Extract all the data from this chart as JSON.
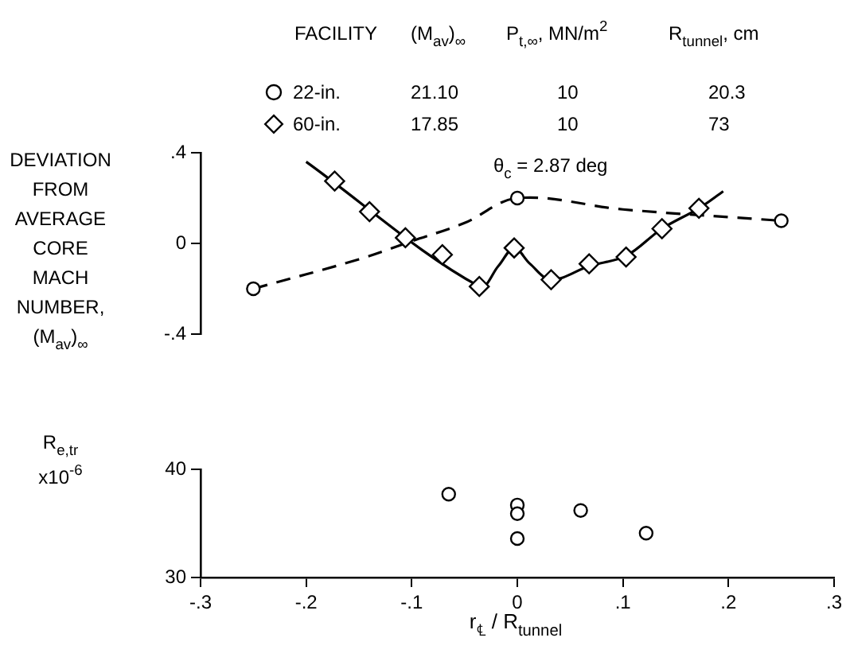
{
  "chart_data": [
    {
      "type": "scatter",
      "ylabel": "DEVIATION FROM AVERAGE CORE MACH NUMBER, (M$_{av}$)$_{∞}$",
      "legend_title": "FACILITY",
      "legend": "top",
      "annotations": [
        "(M$_{av}$)$_{∞}$",
        "P$_{t,∞}$, MN/m$^{2}$",
        "R$_{tunnel}$, cm",
        "21.10",
        "10",
        "20.3",
        "17.85",
        "10",
        "73",
        "θ$_{c}$ = 2.87 deg"
      ],
      "xlim": [
        -0.3,
        0.3
      ],
      "ylim": [
        -0.4,
        0.4
      ],
      "yticks": [
        {
          "value": 0.4,
          "label": ".4"
        },
        0,
        {
          "value": -0.4,
          "label": "-.4"
        }
      ],
      "tick_labels": "y",
      "series": [
        {
          "name": "22-in.",
          "type": "scatter",
          "marker": "circle",
          "color": "#000000",
          "x": [
            -0.25,
            0,
            0.25
          ],
          "values": [
            -0.2,
            0.2,
            0.1
          ]
        },
        {
          "name": "60-in.",
          "type": "scatter",
          "marker": "diamond",
          "color": "#000000",
          "x": [
            -0.173,
            -0.14,
            -0.106,
            -0.071,
            -0.036,
            -0.003,
            0.032,
            0.068,
            0.103,
            0.137,
            0.172
          ],
          "values": [
            0.275,
            0.14,
            0.025,
            -0.05,
            -0.19,
            -0.02,
            -0.16,
            -0.09,
            -0.06,
            0.065,
            0.155
          ]
        },
        {
          "type": "line",
          "marker": "none",
          "line_style": "solid",
          "color": "#000000",
          "x": [
            -0.2,
            -0.036,
            -0.018,
            -0.003,
            0.012,
            0.032,
            0.068,
            0.103,
            0.137,
            0.172,
            0.195
          ],
          "values": [
            0.36,
            -0.19,
            -0.1,
            -0.02,
            -0.09,
            -0.16,
            -0.1,
            -0.055,
            0.065,
            0.155,
            0.23
          ]
        },
        {
          "type": "line",
          "marker": "none",
          "line_style": "dashed",
          "color": "#000000",
          "x": [
            -0.25,
            -0.15,
            -0.1,
            -0.05,
            0,
            0.1,
            0.25
          ],
          "values": [
            -0.2,
            -0.07,
            0.01,
            0.09,
            0.2,
            0.15,
            0.1
          ]
        }
      ]
    },
    {
      "type": "scatter",
      "xlabel": "r$_{℄}$ / R$_{tunnel}$",
      "ylabel": "R$_{e,tr}$ x10$^{-6}$",
      "xlim": [
        -0.3,
        0.3
      ],
      "xticks": [
        {
          "value": -0.3,
          "label": "-.3"
        },
        {
          "value": -0.2,
          "label": "-.2"
        },
        {
          "value": -0.1,
          "label": "-.1"
        },
        0,
        {
          "value": 0.1,
          "label": ".1"
        },
        {
          "value": 0.2,
          "label": ".2"
        },
        {
          "value": 0.3,
          "label": ".3"
        }
      ],
      "ylim": [
        30,
        40
      ],
      "yticks": [
        30,
        40
      ],
      "series": [
        {
          "type": "scatter",
          "marker": "circle",
          "color": "#000000",
          "x": [
            -0.065,
            0,
            0,
            0,
            0.06,
            0.122
          ],
          "values": [
            37.7,
            36.7,
            35.9,
            33.6,
            36.2,
            34.1
          ]
        }
      ]
    }
  ]
}
